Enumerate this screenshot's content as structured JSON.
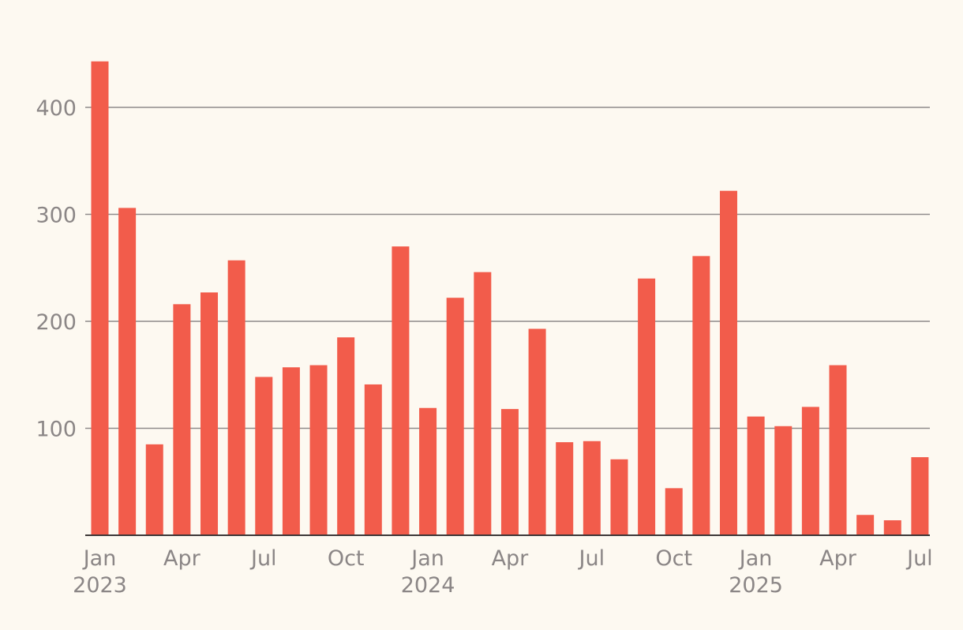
{
  "chart_data": {
    "type": "bar",
    "bar_color": "#f25c4b",
    "background_color": "#fdf9f1",
    "grid": true,
    "ylim": [
      0,
      440
    ],
    "yticks": [
      100,
      200,
      300,
      400
    ],
    "categories": [
      "2023-01",
      "2023-02",
      "2023-03",
      "2023-04",
      "2023-05",
      "2023-06",
      "2023-07",
      "2023-08",
      "2023-09",
      "2023-10",
      "2023-11",
      "2023-12",
      "2024-01",
      "2024-02",
      "2024-03",
      "2024-04",
      "2024-05",
      "2024-06",
      "2024-07",
      "2024-08",
      "2024-09",
      "2024-10",
      "2024-11",
      "2024-12",
      "2025-01",
      "2025-02",
      "2025-03",
      "2025-04",
      "2025-05",
      "2025-06",
      "2025-07"
    ],
    "values": [
      443,
      306,
      85,
      216,
      227,
      257,
      148,
      157,
      159,
      185,
      141,
      270,
      119,
      222,
      246,
      118,
      193,
      87,
      88,
      71,
      240,
      44,
      261,
      322,
      111,
      102,
      120,
      159,
      19,
      14,
      73
    ],
    "x_tick_labels": [
      {
        "index": 0,
        "month": "Jan",
        "year": "2023"
      },
      {
        "index": 3,
        "month": "Apr",
        "year": ""
      },
      {
        "index": 6,
        "month": "Jul",
        "year": ""
      },
      {
        "index": 9,
        "month": "Oct",
        "year": ""
      },
      {
        "index": 12,
        "month": "Jan",
        "year": "2024"
      },
      {
        "index": 15,
        "month": "Apr",
        "year": ""
      },
      {
        "index": 18,
        "month": "Jul",
        "year": ""
      },
      {
        "index": 21,
        "month": "Oct",
        "year": ""
      },
      {
        "index": 24,
        "month": "Jan",
        "year": "2025"
      },
      {
        "index": 27,
        "month": "Apr",
        "year": ""
      },
      {
        "index": 30,
        "month": "Jul",
        "year": ""
      }
    ]
  }
}
